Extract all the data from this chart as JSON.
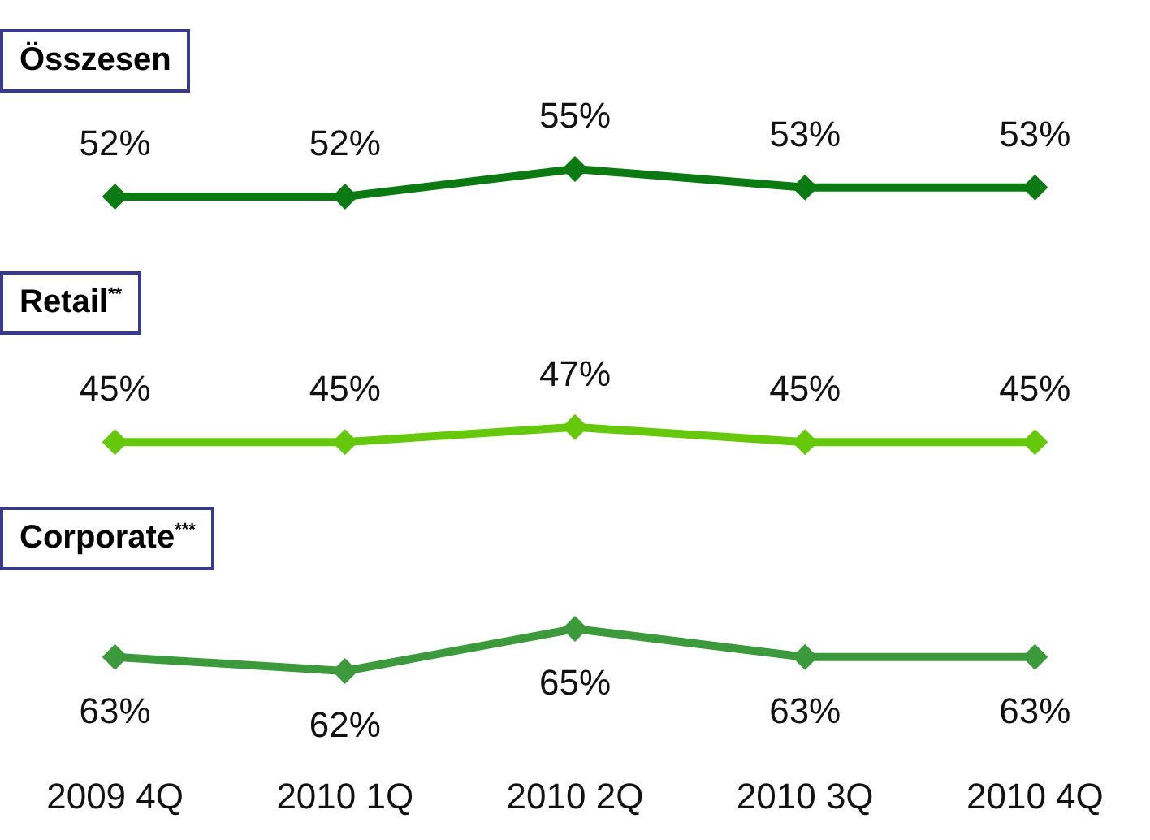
{
  "chart_data": [
    {
      "type": "line",
      "categories": [
        null,
        null,
        null,
        null,
        null
      ],
      "series": [
        {
          "name": "Összesen",
          "color": "#0b7a12",
          "values": [
            52,
            52,
            55,
            53,
            53
          ],
          "value_labels": [
            "52%",
            "52%",
            "55%",
            "53%",
            "53%"
          ]
        }
      ],
      "marker": "diamond",
      "tick_labels": false,
      "grid": false,
      "legend": false
    },
    {
      "type": "line",
      "categories": [
        null,
        null,
        null,
        null,
        null
      ],
      "series": [
        {
          "name": "Retail$^{**}$",
          "color": "#66c80a",
          "values": [
            45,
            45,
            47,
            45,
            45
          ],
          "value_labels": [
            "45%",
            "45%",
            "47%",
            "45%",
            "45%"
          ]
        }
      ],
      "marker": "diamond",
      "tick_labels": false,
      "grid": false,
      "legend": false
    },
    {
      "type": "line",
      "categories": [
        "2009 4Q",
        "2010 1Q",
        "2010 2Q",
        "2010 3Q",
        "2010 4Q"
      ],
      "series": [
        {
          "name": "Corporate$^{***}$",
          "color": "#3c9a3c",
          "values": [
            63,
            62,
            65,
            63,
            63
          ],
          "value_labels": [
            "63%",
            "62%",
            "65%",
            "63%",
            "63%"
          ]
        }
      ],
      "marker": "diamond",
      "tick_labels": "x",
      "grid": false,
      "legend": false
    }
  ]
}
